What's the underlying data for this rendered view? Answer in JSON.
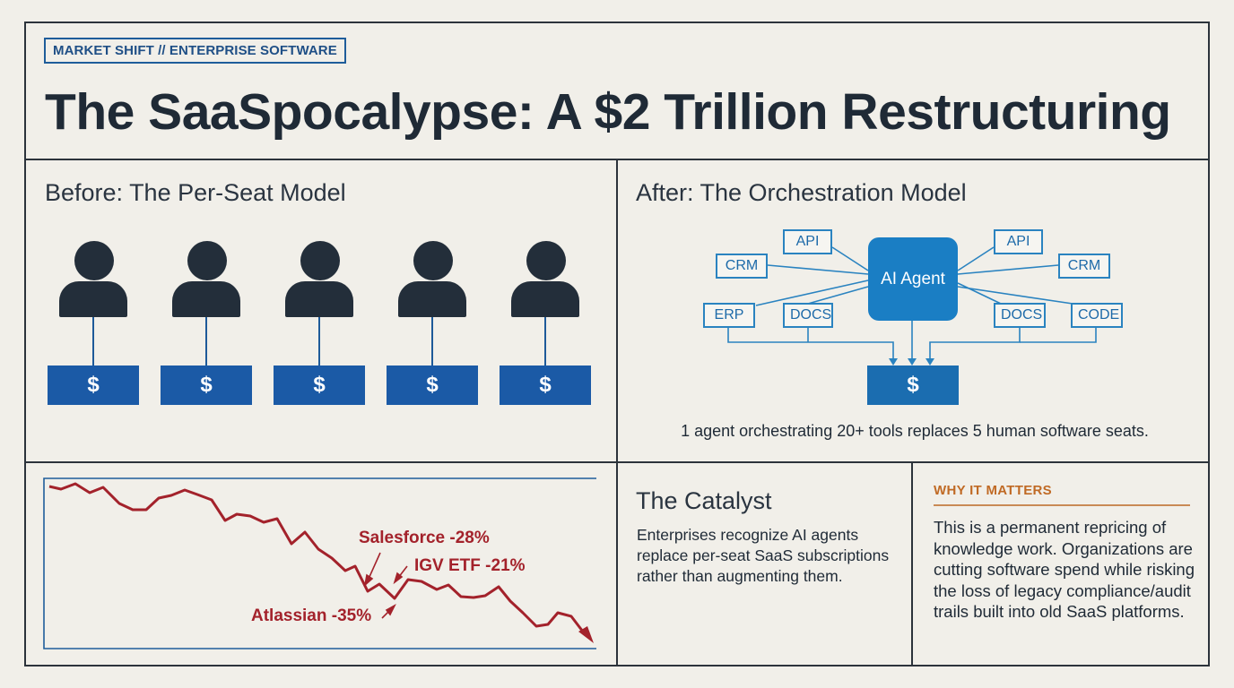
{
  "header": {
    "tag": "MARKET SHIFT // ENTERPRISE SOFTWARE",
    "title": "The SaaSpocalypse: A $2 Trillion Restructuring"
  },
  "before": {
    "heading": "Before: The Per-Seat Model",
    "seat_symbol": "$",
    "seat_count": 5
  },
  "after": {
    "heading": "After: The Orchestration Model",
    "agent_label": "AI Agent",
    "tools_left": [
      "API",
      "CRM",
      "ERP",
      "DOCS"
    ],
    "tools_right": [
      "API",
      "CRM",
      "DOCS",
      "CODE"
    ],
    "output_symbol": "$",
    "caption": "1 agent orchestrating 20+ tools replaces 5 human software seats."
  },
  "chart": {
    "labels": {
      "salesforce": "Salesforce -28%",
      "igv": "IGV ETF -21%",
      "atlassian": "Atlassian -35%"
    }
  },
  "catalyst": {
    "heading": "The Catalyst",
    "body": "Enterprises recognize AI agents replace per-seat SaaS subscriptions rather than augmenting them."
  },
  "why": {
    "heading": "WHY IT MATTERS",
    "body": "This is a permanent repricing of knowledge work. Organizations are cutting software spend while risking the loss of legacy compliance/audit trails built into old SaaS platforms."
  },
  "colors": {
    "navy": "#1f2a36",
    "seat_blue": "#1b5aa6",
    "agent_blue": "#1a7ec4",
    "decline_red": "#a3222b",
    "accent_orange": "#c06a25"
  }
}
